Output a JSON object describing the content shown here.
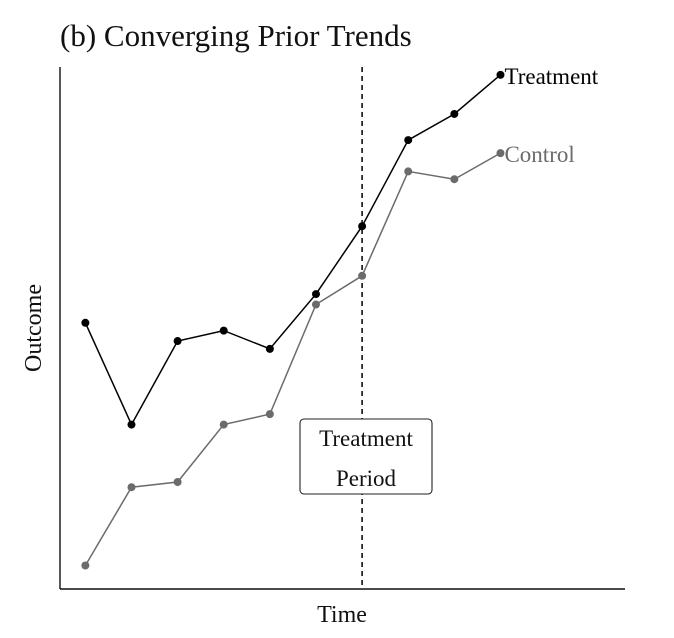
{
  "chart_data": {
    "type": "line",
    "title": "(b) Converging Prior Trends",
    "xlabel": "Time",
    "ylabel": "Outcome",
    "x": [
      1,
      2,
      3,
      4,
      5,
      6,
      7,
      8,
      9,
      10
    ],
    "xlim": [
      0.45,
      12.7
    ],
    "ylim": [
      0,
      10
    ],
    "axis_ticks": false,
    "grid": false,
    "series": [
      {
        "name": "Treatment",
        "color": "#000000",
        "values": [
          5.1,
          3.15,
          4.75,
          4.95,
          4.6,
          5.65,
          6.95,
          8.6,
          9.1,
          9.85
        ]
      },
      {
        "name": "Control",
        "color": "#6b6b6b",
        "values": [
          0.45,
          1.95,
          2.05,
          3.15,
          3.35,
          5.45,
          6.0,
          8.0,
          7.85,
          8.35
        ]
      }
    ],
    "treatment_start": 7.0,
    "annotation": {
      "line1": "Treatment",
      "line2": "Period"
    }
  }
}
